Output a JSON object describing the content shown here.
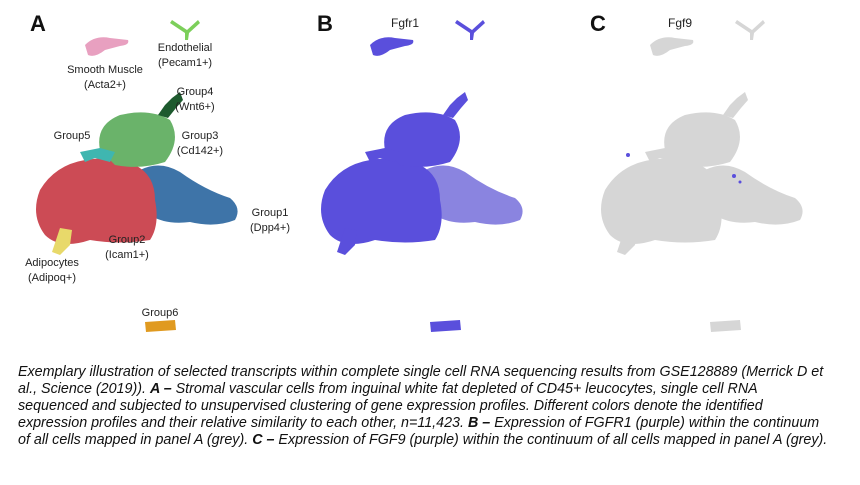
{
  "panels": [
    {
      "letter": "A",
      "labels": [
        {
          "name": "Smooth Muscle",
          "marker": "(Acta2+)"
        },
        {
          "name": "Endothelial",
          "marker": "(Pecam1+)"
        },
        {
          "name": "Group4",
          "marker": "(Wnt6+)"
        },
        {
          "name": "Group5"
        },
        {
          "name": "Group3",
          "marker": "(Cd142+)"
        },
        {
          "name": "Group1",
          "marker": "(Dpp4+)"
        },
        {
          "name": "Group2",
          "marker": "(Icam1+)"
        },
        {
          "name": "Adipocytes",
          "marker": "(Adipoq+)"
        },
        {
          "name": "Group6"
        }
      ]
    },
    {
      "letter": "B",
      "title": "Fgfr1"
    },
    {
      "letter": "C",
      "title": "Fgf9"
    }
  ],
  "caption": {
    "intro": "Exemplary illustration of selected transcripts within complete single cell RNA sequencing results from GSE128889 (Merrick D et al., Science (2019)).",
    "a_key": "A –",
    "a_text": "Stromal vascular cells from inguinal white fat depleted of CD45+ leucocytes, single cell RNA sequenced and subjected to unsupervised clustering of gene expression profiles. Different colors denote the identified expression profiles and their relative similarity to each other, n=11,423.",
    "b_key": "B –",
    "b_text": "Expression of FGFR1 (purple) within the continuum of all cells mapped in panel A (grey).",
    "c_key": "C –",
    "c_text": "Expression of FGF9 (purple) within the continuum of all cells mapped in panel A (grey)."
  }
}
